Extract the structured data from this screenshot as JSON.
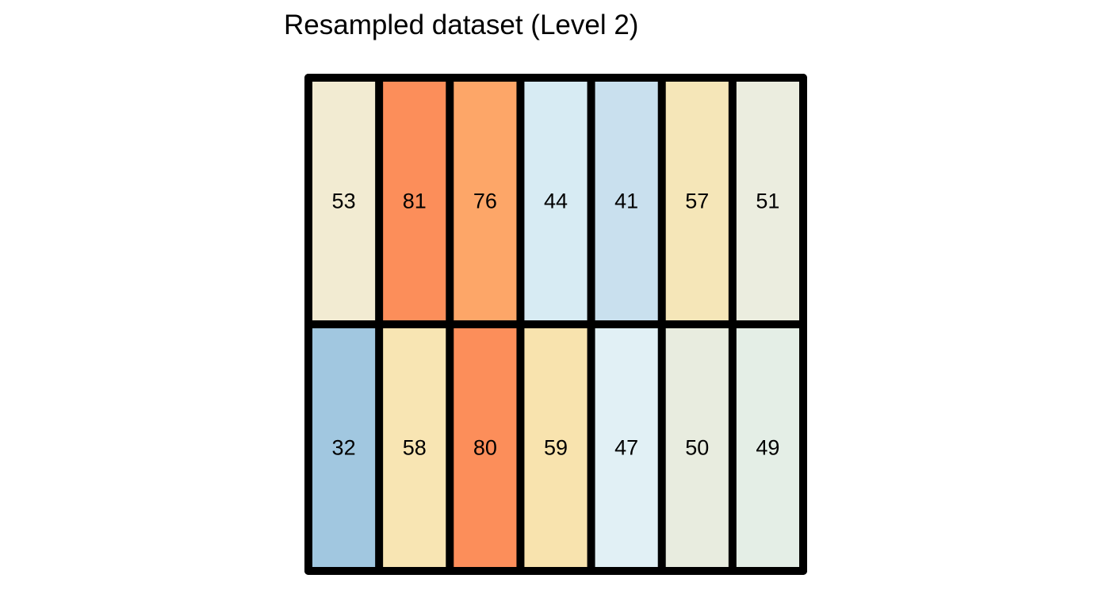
{
  "chart_data": {
    "type": "heatmap",
    "title": "Resampled dataset (Level 2)",
    "rows": 2,
    "cols": 7,
    "values": [
      [
        53,
        81,
        76,
        44,
        41,
        57,
        51
      ],
      [
        32,
        58,
        80,
        59,
        47,
        50,
        49
      ]
    ],
    "cell_colors": [
      [
        "#f2ebd2",
        "#fc8e5a",
        "#fda668",
        "#d7ebf3",
        "#c9e0ee",
        "#f5e6b8",
        "#ebeddf"
      ],
      [
        "#a1c7e0",
        "#f8e5b3",
        "#fc8e5a",
        "#f8e3ae",
        "#e1f0f5",
        "#e8ecdf",
        "#e4eee6"
      ]
    ],
    "border_color": "#000000",
    "grid": true,
    "legend": "none"
  }
}
